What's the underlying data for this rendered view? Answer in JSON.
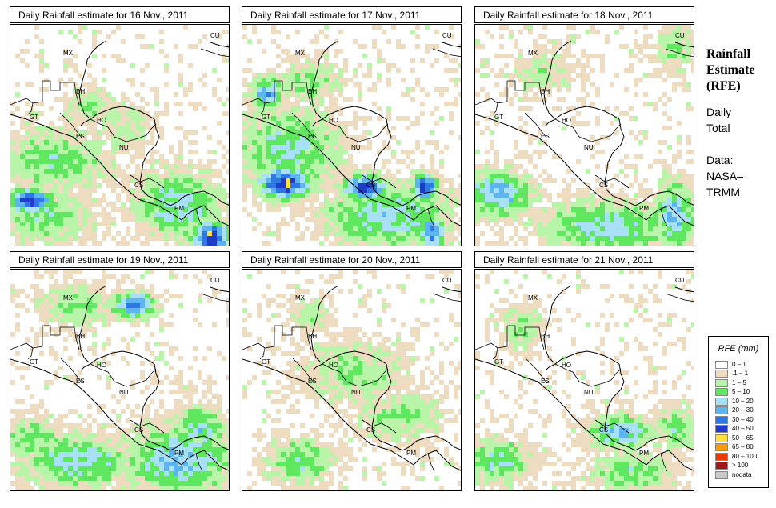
{
  "panels": [
    {
      "title": "Daily Rainfall estimate for  16 Nov., 2011",
      "seed": 16,
      "blobs": [
        [
          0.08,
          0.78,
          0.1,
          0.05,
          7.5
        ],
        [
          0.2,
          0.6,
          0.25,
          0.15,
          3
        ],
        [
          0.5,
          0.45,
          0.15,
          0.12,
          2
        ],
        [
          0.9,
          0.95,
          0.08,
          0.08,
          8
        ],
        [
          0.75,
          0.8,
          0.2,
          0.15,
          4
        ],
        [
          0.35,
          0.35,
          0.12,
          0.08,
          2.5
        ],
        [
          0.15,
          0.85,
          0.25,
          0.12,
          3
        ]
      ]
    },
    {
      "title": "Daily Rainfall estimate for  17 Nov., 2011",
      "seed": 17,
      "blobs": [
        [
          0.18,
          0.7,
          0.12,
          0.07,
          7.5
        ],
        [
          0.55,
          0.72,
          0.1,
          0.06,
          7
        ],
        [
          0.82,
          0.72,
          0.06,
          0.06,
          7
        ],
        [
          0.85,
          0.92,
          0.06,
          0.08,
          6
        ],
        [
          0.2,
          0.55,
          0.25,
          0.2,
          3.5
        ],
        [
          0.65,
          0.85,
          0.3,
          0.15,
          4
        ],
        [
          0.3,
          0.25,
          0.15,
          0.1,
          2.5
        ],
        [
          0.1,
          0.3,
          0.08,
          0.08,
          5
        ]
      ]
    },
    {
      "title": "Daily Rainfall estimate for  18 Nov., 2011",
      "seed": 18,
      "blobs": [
        [
          0.1,
          0.75,
          0.15,
          0.1,
          5
        ],
        [
          0.6,
          0.9,
          0.3,
          0.12,
          4
        ],
        [
          0.9,
          0.85,
          0.1,
          0.15,
          4.5
        ],
        [
          0.3,
          0.2,
          0.15,
          0.1,
          2
        ],
        [
          0.9,
          0.1,
          0.1,
          0.1,
          2.5
        ]
      ]
    },
    {
      "title": "Daily Rainfall estimate for  19 Nov., 2011",
      "seed": 19,
      "blobs": [
        [
          0.55,
          0.15,
          0.1,
          0.06,
          6
        ],
        [
          0.3,
          0.15,
          0.2,
          0.1,
          2.5
        ],
        [
          0.3,
          0.85,
          0.25,
          0.12,
          4
        ],
        [
          0.75,
          0.85,
          0.25,
          0.15,
          4.5
        ],
        [
          0.85,
          0.7,
          0.12,
          0.1,
          4
        ],
        [
          0.1,
          0.75,
          0.15,
          0.1,
          3
        ]
      ]
    },
    {
      "title": "Daily Rainfall estimate for  20 Nov., 2011",
      "seed": 20,
      "blobs": [
        [
          0.25,
          0.85,
          0.15,
          0.1,
          3.5
        ],
        [
          0.5,
          0.45,
          0.25,
          0.15,
          2.5
        ],
        [
          0.3,
          0.2,
          0.1,
          0.1,
          2
        ],
        [
          0.7,
          0.65,
          0.2,
          0.12,
          2.5
        ]
      ]
    },
    {
      "title": "Daily Rainfall estimate for  21 Nov., 2011",
      "seed": 21,
      "blobs": [
        [
          0.65,
          0.72,
          0.15,
          0.08,
          4.5
        ],
        [
          0.1,
          0.85,
          0.15,
          0.1,
          3.5
        ],
        [
          0.7,
          0.9,
          0.2,
          0.1,
          3
        ],
        [
          0.2,
          0.25,
          0.1,
          0.1,
          2.5
        ],
        [
          0.9,
          0.7,
          0.1,
          0.1,
          3
        ]
      ]
    }
  ],
  "country_labels": [
    "MX",
    "CU",
    "BH",
    "GT",
    "HO",
    "ES",
    "NU",
    "CS",
    "PM"
  ],
  "side": {
    "title_line1": "Rainfall",
    "title_line2": "Estimate",
    "title_line3": "(RFE)",
    "daily_line1": "Daily",
    "daily_line2": "Total",
    "data_line1": "Data:",
    "data_line2": "NASA–",
    "data_line3": "TRMM"
  },
  "legend": {
    "title": "RFE (mm)",
    "items": [
      {
        "label": "0 – 1",
        "color": "#ffffff"
      },
      {
        "label": ".1 – 1",
        "color": "#eedcc0"
      },
      {
        "label": "1 – 5",
        "color": "#b8f5a8"
      },
      {
        "label": "5 – 10",
        "color": "#5fe85f"
      },
      {
        "label": "10 – 20",
        "color": "#a8e0f5"
      },
      {
        "label": "20 – 30",
        "color": "#5cb4f0"
      },
      {
        "label": "30 – 40",
        "color": "#2e78e6"
      },
      {
        "label": "40 – 50",
        "color": "#1e3cc8"
      },
      {
        "label": "50 – 65",
        "color": "#ffe040"
      },
      {
        "label": "65 – 80",
        "color": "#ff9a00"
      },
      {
        "label": "80 – 100",
        "color": "#e83c00"
      },
      {
        "label": "> 100",
        "color": "#a01818"
      },
      {
        "label": "nodata",
        "color": "#c8c8c8"
      }
    ]
  }
}
